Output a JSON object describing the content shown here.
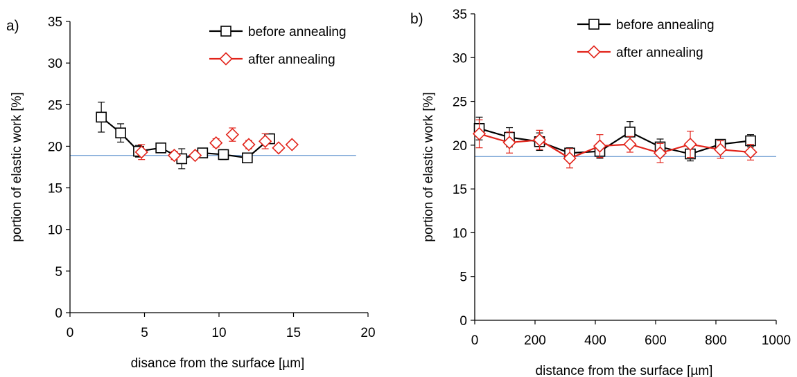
{
  "chart_data": [
    {
      "type": "line",
      "panel_label": "a)",
      "xlabel": "disance from the surface   [µm]",
      "ylabel": "portion of elastic work   [%]",
      "xlim": [
        0,
        20
      ],
      "ylim": [
        0,
        35
      ],
      "xticks": [
        0,
        5,
        10,
        15,
        20
      ],
      "yticks": [
        0,
        5,
        10,
        15,
        20,
        25,
        30,
        35
      ],
      "grid": false,
      "legend_position": "top-right",
      "reference_line": {
        "y": 18.9,
        "x_range": [
          0,
          19.2
        ],
        "color": "#7ba6d6"
      },
      "series": [
        {
          "name": "before annealing",
          "color": "#000000",
          "marker": "square",
          "line": true,
          "x": [
            2.1,
            3.4,
            4.6,
            6.1,
            7.5,
            8.9,
            10.3,
            11.9,
            13.4
          ],
          "y": [
            23.5,
            21.6,
            19.4,
            19.8,
            18.5,
            19.2,
            19.0,
            18.6,
            20.9
          ],
          "err": [
            1.8,
            1.1,
            0.7,
            0.4,
            1.2,
            0.5,
            0.6,
            0.4,
            0.6
          ]
        },
        {
          "name": "after annealing",
          "color": "#e2231a",
          "marker": "diamond",
          "line": false,
          "x": [
            4.8,
            7.0,
            8.4,
            9.8,
            10.9,
            12.0,
            13.1,
            14.0,
            14.9
          ],
          "y": [
            19.3,
            18.9,
            18.9,
            20.4,
            21.4,
            20.2,
            20.6,
            19.8,
            20.2
          ],
          "err": [
            0.9,
            0.5,
            0.3,
            0.5,
            0.8,
            0.5,
            0.9,
            0.3,
            0.3
          ]
        }
      ]
    },
    {
      "type": "line",
      "panel_label": "b)",
      "xlabel": "distance from the surface   [µm]",
      "ylabel": "portion of elastic work   [%]",
      "xlim": [
        0,
        1000
      ],
      "ylim": [
        0,
        35
      ],
      "xticks": [
        0,
        200,
        400,
        600,
        800,
        1000
      ],
      "yticks": [
        0,
        5,
        10,
        15,
        20,
        25,
        30,
        35
      ],
      "grid": false,
      "legend_position": "top-right",
      "reference_line": {
        "y": 18.7,
        "x_range": [
          0,
          1000
        ],
        "color": "#7ba6d6"
      },
      "series": [
        {
          "name": "before annealing",
          "color": "#000000",
          "marker": "square",
          "line": true,
          "x": [
            15,
            115,
            215,
            315,
            415,
            515,
            615,
            715,
            815,
            915
          ],
          "y": [
            21.9,
            20.9,
            20.4,
            19.1,
            19.3,
            21.5,
            19.8,
            19.0,
            20.1,
            20.5
          ],
          "err": [
            1.3,
            1.1,
            1.0,
            0.6,
            0.8,
            1.2,
            0.9,
            0.8,
            0.4,
            0.7
          ]
        },
        {
          "name": "after annealing",
          "color": "#e2231a",
          "marker": "diamond",
          "line": true,
          "x": [
            15,
            115,
            215,
            315,
            415,
            515,
            615,
            715,
            815,
            915
          ],
          "y": [
            21.3,
            20.3,
            20.6,
            18.5,
            19.9,
            20.1,
            19.1,
            20.1,
            19.5,
            19.2
          ],
          "err": [
            1.6,
            1.2,
            1.1,
            1.1,
            1.3,
            0.9,
            1.1,
            1.5,
            1.0,
            0.9
          ]
        }
      ]
    }
  ]
}
